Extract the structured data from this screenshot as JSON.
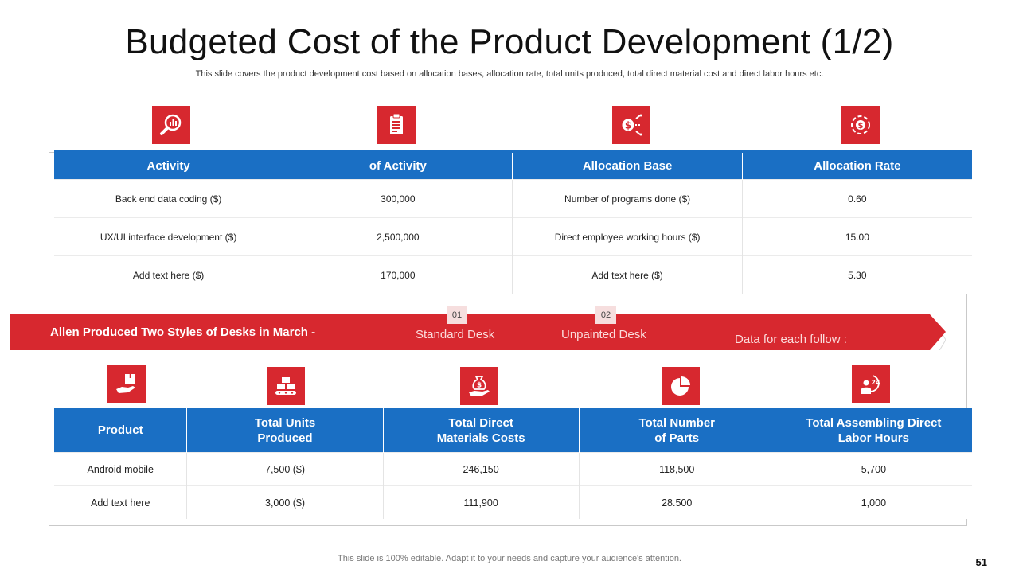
{
  "slide": {
    "title": "Budgeted Cost of the Product Development (1/2)",
    "subtitle": "This slide covers the product development cost based on allocation bases, allocation rate, total units produced, total direct material cost and direct labor hours etc.",
    "footer": "This slide is 100% editable. Adapt it to your needs and capture your audience's attention.",
    "page_number": "51"
  },
  "top_icons": [
    "magnifier-chart-icon",
    "document-clipboard-icon",
    "dollar-allocation-icon",
    "cycle-dollar-icon"
  ],
  "table1": {
    "headers": [
      "Activity",
      "of Activity",
      "Allocation Base",
      "Allocation Rate"
    ],
    "rows": [
      [
        "Back end data coding ($)",
        "300,000",
        "Number of programs done  ($)",
        "0.60"
      ],
      [
        "UX/UI interface development ($)",
        "2,500,000",
        "Direct employee working hours  ($)",
        "15.00"
      ],
      [
        "Add text here ($)",
        "170,000",
        "Add text here ($)",
        "5.30"
      ]
    ]
  },
  "banner": {
    "text": "Allen Produced Two Styles  of Desks in March -",
    "tag1": "01",
    "label1": "Standard Desk",
    "tag2": "02",
    "label2": "Unpainted Desk",
    "label3": "Data for each follow :"
  },
  "bottom_icons": [
    "hand-box-icon",
    "conveyor-boxes-icon",
    "money-bag-hand-icon",
    "pie-chart-icon",
    "worker-24h-icon"
  ],
  "table2": {
    "headers": [
      {
        "line1": "Product",
        "line2": ""
      },
      {
        "line1": "Total Units",
        "line2": "Produced"
      },
      {
        "line1": "Total Direct",
        "line2": "Materials Costs"
      },
      {
        "line1": "Total Number",
        "line2": "of Parts"
      },
      {
        "line1": "Total Assembling Direct",
        "line2": "Labor Hours"
      }
    ],
    "rows": [
      [
        "Android mobile",
        "7,500  ($)",
        "246,150",
        "118,500",
        "5,700"
      ],
      [
        "Add text here",
        "3,000  ($)",
        "111,900",
        "28.500",
        "1,000"
      ]
    ]
  },
  "colors": {
    "accent_red": "#d7282f",
    "header_blue": "#1a6fc4"
  }
}
